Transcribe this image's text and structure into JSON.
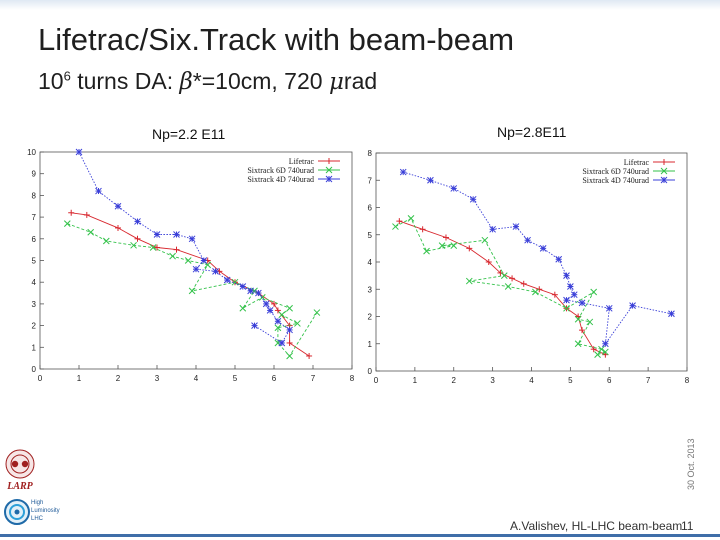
{
  "slide": {
    "title": "Lifetrac/Six.Track with beam-beam",
    "subtitle_prefix": "10",
    "subtitle_exp": "6",
    "subtitle_mid": " turns DA: ",
    "subtitle_beta": "β",
    "subtitle_after_beta": "*=10cm, 720 ",
    "subtitle_mu": "μ",
    "subtitle_unit": "rad",
    "side_date": "30 Oct. 2013",
    "footer_author": "A.Valishev, HL-LHC beam-beam",
    "page_number": "11",
    "colors": {
      "lifetrac": "#d8282f",
      "sixtrack6d": "#33c24a",
      "sixtrack4d": "#3a3fd8",
      "footer_line": "#3f6ea8"
    }
  },
  "logos": {
    "larp_text": "LARP",
    "hl_text": [
      "High",
      "Luminosity",
      "LHC"
    ]
  },
  "chart_data": [
    {
      "type": "line",
      "title": "Np=2.2 E11",
      "xlim": [
        0,
        8
      ],
      "ylim": [
        0,
        10
      ],
      "xticks": [
        "0",
        "1",
        "2",
        "3",
        "4",
        "5",
        "6",
        "7",
        "8"
      ],
      "yticks": [
        "0",
        "1",
        "2",
        "3",
        "4",
        "5",
        "6",
        "7",
        "8",
        "9",
        "10"
      ],
      "grid": false,
      "legend": "top-right",
      "series": [
        {
          "name": "Lifetrac",
          "x": [
            0.8,
            1.2,
            2.0,
            2.5,
            3.0,
            3.5,
            4.3,
            4.6,
            5.0,
            5.6,
            6.0,
            6.1,
            6.4,
            6.4,
            6.9
          ],
          "y": [
            7.2,
            7.1,
            6.5,
            6.0,
            5.6,
            5.5,
            5.0,
            4.5,
            4.0,
            3.5,
            3.0,
            2.7,
            2.0,
            1.2,
            0.6
          ]
        },
        {
          "name": "Sixtrack 6D 740urad",
          "x": [
            0.7,
            1.3,
            1.7,
            2.4,
            2.9,
            3.4,
            3.8,
            4.3,
            3.9,
            5.0,
            5.5,
            5.2,
            5.7,
            6.4,
            6.2,
            6.6,
            6.1,
            6.1,
            6.4,
            7.1
          ],
          "y": [
            6.7,
            6.3,
            5.9,
            5.7,
            5.6,
            5.2,
            5.0,
            4.8,
            3.6,
            4.0,
            3.6,
            2.8,
            3.3,
            2.8,
            2.5,
            2.1,
            1.9,
            1.2,
            0.6,
            2.6
          ]
        },
        {
          "name": "Sixtrack 4D 740urad",
          "x": [
            1.0,
            1.5,
            2.0,
            2.5,
            3.0,
            3.5,
            3.9,
            4.2,
            4.0,
            4.5,
            4.8,
            5.2,
            5.4,
            5.6,
            5.8,
            5.9,
            6.1,
            6.4,
            6.2,
            5.5
          ],
          "y": [
            10.0,
            8.2,
            7.5,
            6.8,
            6.2,
            6.2,
            6.0,
            5.0,
            4.6,
            4.5,
            4.1,
            3.8,
            3.6,
            3.5,
            3.0,
            2.7,
            2.2,
            1.8,
            1.2,
            2.0
          ]
        }
      ]
    },
    {
      "type": "line",
      "title": "Np=2.8E11",
      "xlim": [
        0,
        8
      ],
      "ylim": [
        0,
        8
      ],
      "xticks": [
        "0",
        "1",
        "2",
        "3",
        "4",
        "5",
        "6",
        "7",
        "8"
      ],
      "yticks": [
        "0",
        "1",
        "2",
        "3",
        "4",
        "5",
        "6",
        "7",
        "8"
      ],
      "grid": false,
      "legend": "top-right",
      "series": [
        {
          "name": "Lifetrac",
          "x": [
            0.6,
            1.2,
            1.8,
            2.4,
            2.9,
            3.2,
            3.5,
            3.8,
            4.2,
            4.6,
            4.9,
            5.2,
            5.3,
            5.6,
            5.9
          ],
          "y": [
            5.5,
            5.2,
            4.9,
            4.5,
            4.0,
            3.6,
            3.4,
            3.2,
            3.0,
            2.8,
            2.3,
            2.0,
            1.5,
            0.8,
            0.6
          ]
        },
        {
          "name": "Sixtrack 6D 740urad",
          "x": [
            0.5,
            0.9,
            1.3,
            2.0,
            1.7,
            2.8,
            3.3,
            2.4,
            3.4,
            4.1,
            4.9,
            5.6,
            5.2,
            5.5,
            5.2,
            5.8,
            5.7,
            5.9
          ],
          "y": [
            5.3,
            5.6,
            4.4,
            4.6,
            4.6,
            4.8,
            3.5,
            3.3,
            3.1,
            2.9,
            2.3,
            2.9,
            1.9,
            1.8,
            1.0,
            0.8,
            0.6,
            0.7
          ]
        },
        {
          "name": "Sixtrack 4D 740urad",
          "x": [
            0.7,
            1.4,
            2.0,
            2.5,
            3.0,
            3.6,
            3.9,
            4.3,
            4.7,
            4.9,
            5.0,
            5.1,
            4.9,
            5.3,
            6.0,
            5.9,
            6.6,
            7.6
          ],
          "y": [
            7.3,
            7.0,
            6.7,
            6.3,
            5.2,
            5.3,
            4.8,
            4.5,
            4.1,
            3.5,
            3.1,
            2.8,
            2.6,
            2.5,
            2.3,
            1.0,
            2.4,
            2.1
          ]
        }
      ]
    }
  ]
}
